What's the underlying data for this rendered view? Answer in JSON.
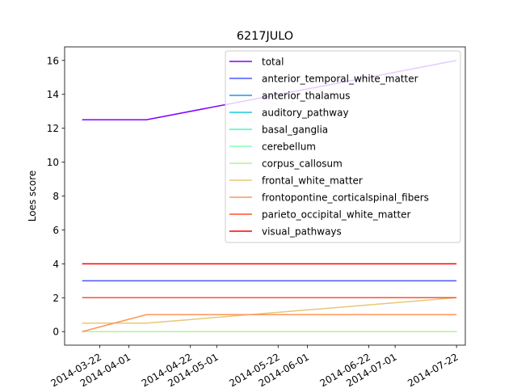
{
  "chart_data": {
    "type": "line",
    "title": "6217JULO",
    "xlabel": "",
    "ylabel": "Loes score",
    "xlim": [
      "2014-03-10",
      "2014-07-25"
    ],
    "ylim": [
      -0.8,
      16.8
    ],
    "yticks": [
      0,
      2,
      4,
      6,
      8,
      10,
      12,
      14,
      16
    ],
    "xticks": [
      {
        "date": "2014-03-22",
        "label": "2014-03-22"
      },
      {
        "date": "2014-04-01",
        "label": "2014-04-01"
      },
      {
        "date": "2014-04-22",
        "label": "2014-04-22"
      },
      {
        "date": "2014-05-01",
        "label": "2014-05-01"
      },
      {
        "date": "2014-05-22",
        "label": "2014-05-22"
      },
      {
        "date": "2014-06-01",
        "label": "2014-06-01"
      },
      {
        "date": "2014-06-22",
        "label": "2014-06-22"
      },
      {
        "date": "2014-07-01",
        "label": "2014-07-01"
      },
      {
        "date": "2014-07-22",
        "label": "2014-07-22"
      }
    ],
    "x": [
      "2014-03-16",
      "2014-04-07",
      "2014-07-22"
    ],
    "series": [
      {
        "name": "total",
        "color": "#8000ff",
        "values": [
          12.5,
          12.5,
          16
        ]
      },
      {
        "name": "anterior_temporal_white_matter",
        "color": "#4a57fb",
        "values": [
          3,
          3,
          3
        ]
      },
      {
        "name": "anterior_thalamus",
        "color": "#1996f3",
        "values": [
          0,
          0,
          0
        ]
      },
      {
        "name": "auditory_pathway",
        "color": "#1cc8e0",
        "values": [
          0,
          0,
          0
        ]
      },
      {
        "name": "basal_ganglia",
        "color": "#4df3ce",
        "values": [
          0,
          0,
          0
        ]
      },
      {
        "name": "cerebellum",
        "color": "#80ffb4",
        "values": [
          0,
          0,
          0
        ]
      },
      {
        "name": "corpus_callosum",
        "color": "#b3f396",
        "values": [
          0,
          0,
          0
        ]
      },
      {
        "name": "frontal_white_matter",
        "color": "#e6c878",
        "values": [
          0.5,
          0.5,
          2
        ]
      },
      {
        "name": "frontopontine_corticalspinal_fibers",
        "color": "#ff9658",
        "values": [
          0,
          1,
          1
        ]
      },
      {
        "name": "parieto_occipital_white_matter",
        "color": "#ff5231",
        "values": [
          2,
          2,
          2
        ]
      },
      {
        "name": "visual_pathways",
        "color": "#ff0000",
        "values": [
          4,
          4,
          4
        ]
      }
    ],
    "legend_position": "top-right",
    "grid": false
  }
}
